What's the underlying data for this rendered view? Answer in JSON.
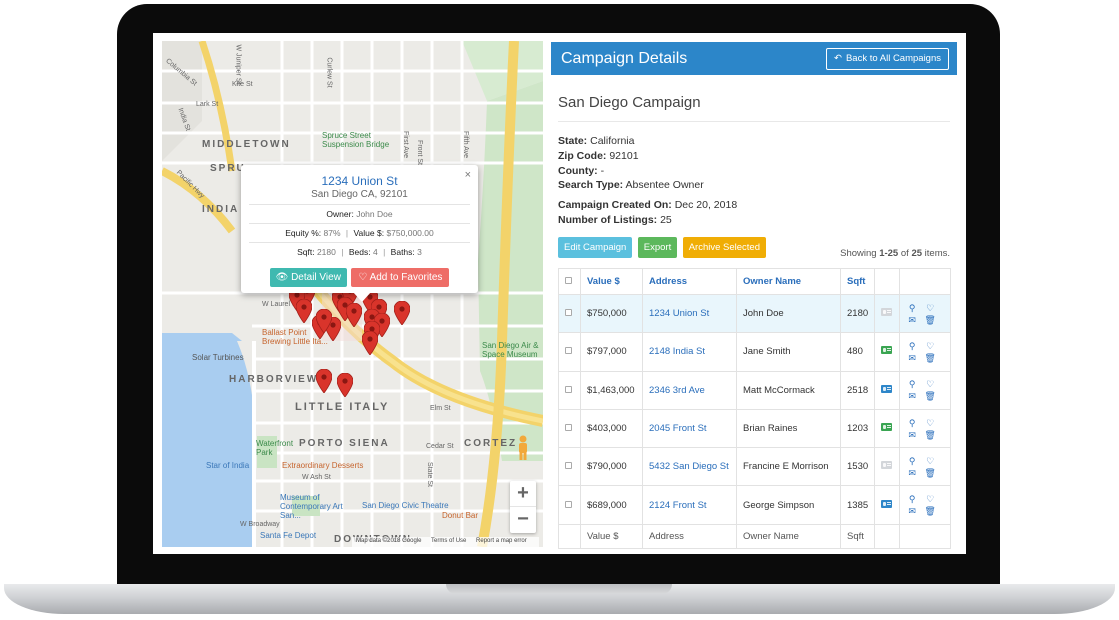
{
  "map": {
    "districts": [
      "MIDDLETOWN",
      "SPRU",
      "INDIA",
      "HARBORVIEW",
      "LITTLE ITALY",
      "PORTO SIENA",
      "CORTEZ",
      "DOWNTOWN"
    ],
    "labels": {
      "spruce_bridge": "Spruce Street Suspension Bridge",
      "san_diego_air": "San Diego Air & Space Museum",
      "ballast_point": "Ballast Point Brewing Little Ita...",
      "solar_turbines": "Solar Turbines",
      "waterfront_park": "Waterfront Park",
      "star_of_india": "Star of India",
      "extraordinary": "Extraordinary Desserts",
      "museum": "Museum of Contemporary Art San...",
      "civic_theatre": "San Diego Civic Theatre",
      "donut_bar": "Donut Bar",
      "santa_fe": "Santa Fe Depot",
      "pacific_hwy": "Pacific Hwy",
      "w_laurel": "W Laurel St",
      "elm_st": "Elm St",
      "cedar_st": "Cedar St",
      "w_ash": "W Ash St",
      "w_broadway": "W Broadway",
      "fifth_ave": "Fifth Ave",
      "first_ave": "First Ave",
      "front_st": "Front St",
      "columbia": "Columbia St",
      "curlew": "Curlew St",
      "w_juniper": "W Juniper St",
      "lark": "Lark St",
      "kite": "Kite St",
      "india_st": "India St",
      "state_st": "State St"
    },
    "footer": {
      "data": "Map data ©2018 Google",
      "terms": "Terms of Use",
      "report": "Report a map error"
    },
    "zoom_in": "+",
    "zoom_out": "−",
    "popup": {
      "close": "×",
      "title": "1234 Union St",
      "subtitle": "San Diego CA, 92101",
      "owner_label": "Owner:",
      "owner": "John Doe",
      "equity_label": "Equity %:",
      "equity": "87%",
      "value_label": "Value $:",
      "value": "$750,000.00",
      "sqft_label": "Sqft:",
      "sqft": "2180",
      "beds_label": "Beds:",
      "beds": "4",
      "baths_label": "Baths:",
      "baths": "3",
      "detail_btn": "Detail View",
      "fav_btn": "Add to Favorites"
    }
  },
  "panel": {
    "title": "Campaign Details",
    "back_btn": "Back to All Campaigns",
    "campaign_name": "San Diego Campaign",
    "info": {
      "state_label": "State:",
      "state": "California",
      "zip_label": "Zip Code:",
      "zip": "92101",
      "county_label": "County:",
      "county": "-",
      "search_type_label": "Search Type:",
      "search_type": "Absentee Owner",
      "created_label": "Campaign Created On:",
      "created": "Dec 20, 2018",
      "listings_label": "Number of Listings:",
      "listings": "25"
    },
    "actions": {
      "edit": "Edit Campaign",
      "export": "Export",
      "archive": "Archive Selected"
    },
    "showing": {
      "prefix": "Showing",
      "range": "1-25",
      "of": "of",
      "total": "25",
      "suffix": "items."
    },
    "table": {
      "headers": [
        "Value $",
        "Address",
        "Owner Name",
        "Sqft"
      ],
      "rows": [
        {
          "value": "$750,000",
          "address": "1234 Union St",
          "owner": "John Doe",
          "sqft": "2180",
          "card": "off"
        },
        {
          "value": "$797,000",
          "address": "2148 India St",
          "owner": "Jane Smith",
          "sqft": "480",
          "card": "green"
        },
        {
          "value": "$1,463,000",
          "address": "2346 3rd Ave",
          "owner": "Matt McCormack",
          "sqft": "2518",
          "card": "on"
        },
        {
          "value": "$403,000",
          "address": "2045 Front St",
          "owner": "Brian Raines",
          "sqft": "1203",
          "card": "green"
        },
        {
          "value": "$790,000",
          "address": "5432 San Diego St",
          "owner": "Francine E Morrison",
          "sqft": "1530",
          "card": "off"
        },
        {
          "value": "$689,000",
          "address": "2124 Front St",
          "owner": "George Simpson",
          "sqft": "1385",
          "card": "on"
        }
      ],
      "footer": [
        "Value $",
        "Address",
        "Owner Name",
        "Sqft"
      ]
    },
    "colors": {
      "header_blue": "#2c86c9",
      "link_blue": "#2a6ebb",
      "edit_btn": "#5bc0de",
      "export_btn": "#5cb85c",
      "archive_btn": "#f0ad05",
      "marker_red": "#d9342b"
    }
  }
}
